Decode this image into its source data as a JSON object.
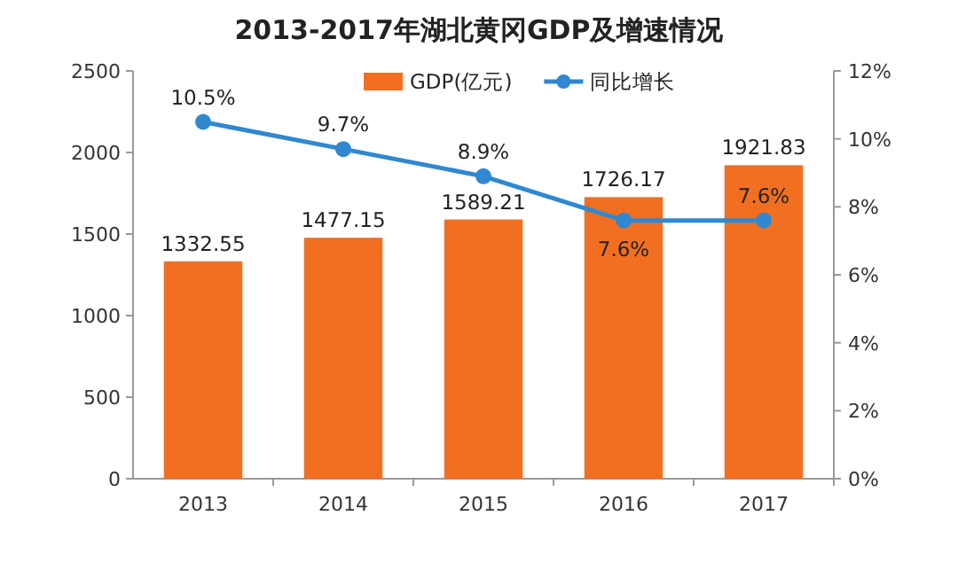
{
  "chart_data": {
    "type": "bar",
    "title": "2013-2017年湖北黄冈GDP及增速情况",
    "categories": [
      "2013",
      "2014",
      "2015",
      "2016",
      "2017"
    ],
    "series": [
      {
        "name": "GDP(亿元)",
        "color": "#f26f22",
        "values": [
          1332.55,
          1477.15,
          1589.21,
          1726.17,
          1921.83
        ]
      },
      {
        "name": "同比增长",
        "type": "line",
        "axis": "y2",
        "color": "#2f88d0",
        "values": [
          10.5,
          9.7,
          8.9,
          7.6,
          7.6
        ],
        "value_labels": [
          "10.5%",
          "9.7%",
          "8.9%",
          "7.6%",
          "7.6%"
        ]
      }
    ],
    "ylim": [
      0,
      2500
    ],
    "yticks": [
      0,
      500,
      1000,
      1500,
      2000,
      2500
    ],
    "y2lim": [
      0,
      12
    ],
    "y2ticks": [
      {
        "value": 0,
        "label": "0%"
      },
      {
        "value": 2,
        "label": "2%"
      },
      {
        "value": 4,
        "label": "4%"
      },
      {
        "value": 6,
        "label": "6%"
      },
      {
        "value": 8,
        "label": "8%"
      },
      {
        "value": 10,
        "label": "10%"
      },
      {
        "value": 12,
        "label": "12%"
      }
    ],
    "data_labels": true,
    "legend": "top",
    "marker": "circle",
    "grid": false
  }
}
